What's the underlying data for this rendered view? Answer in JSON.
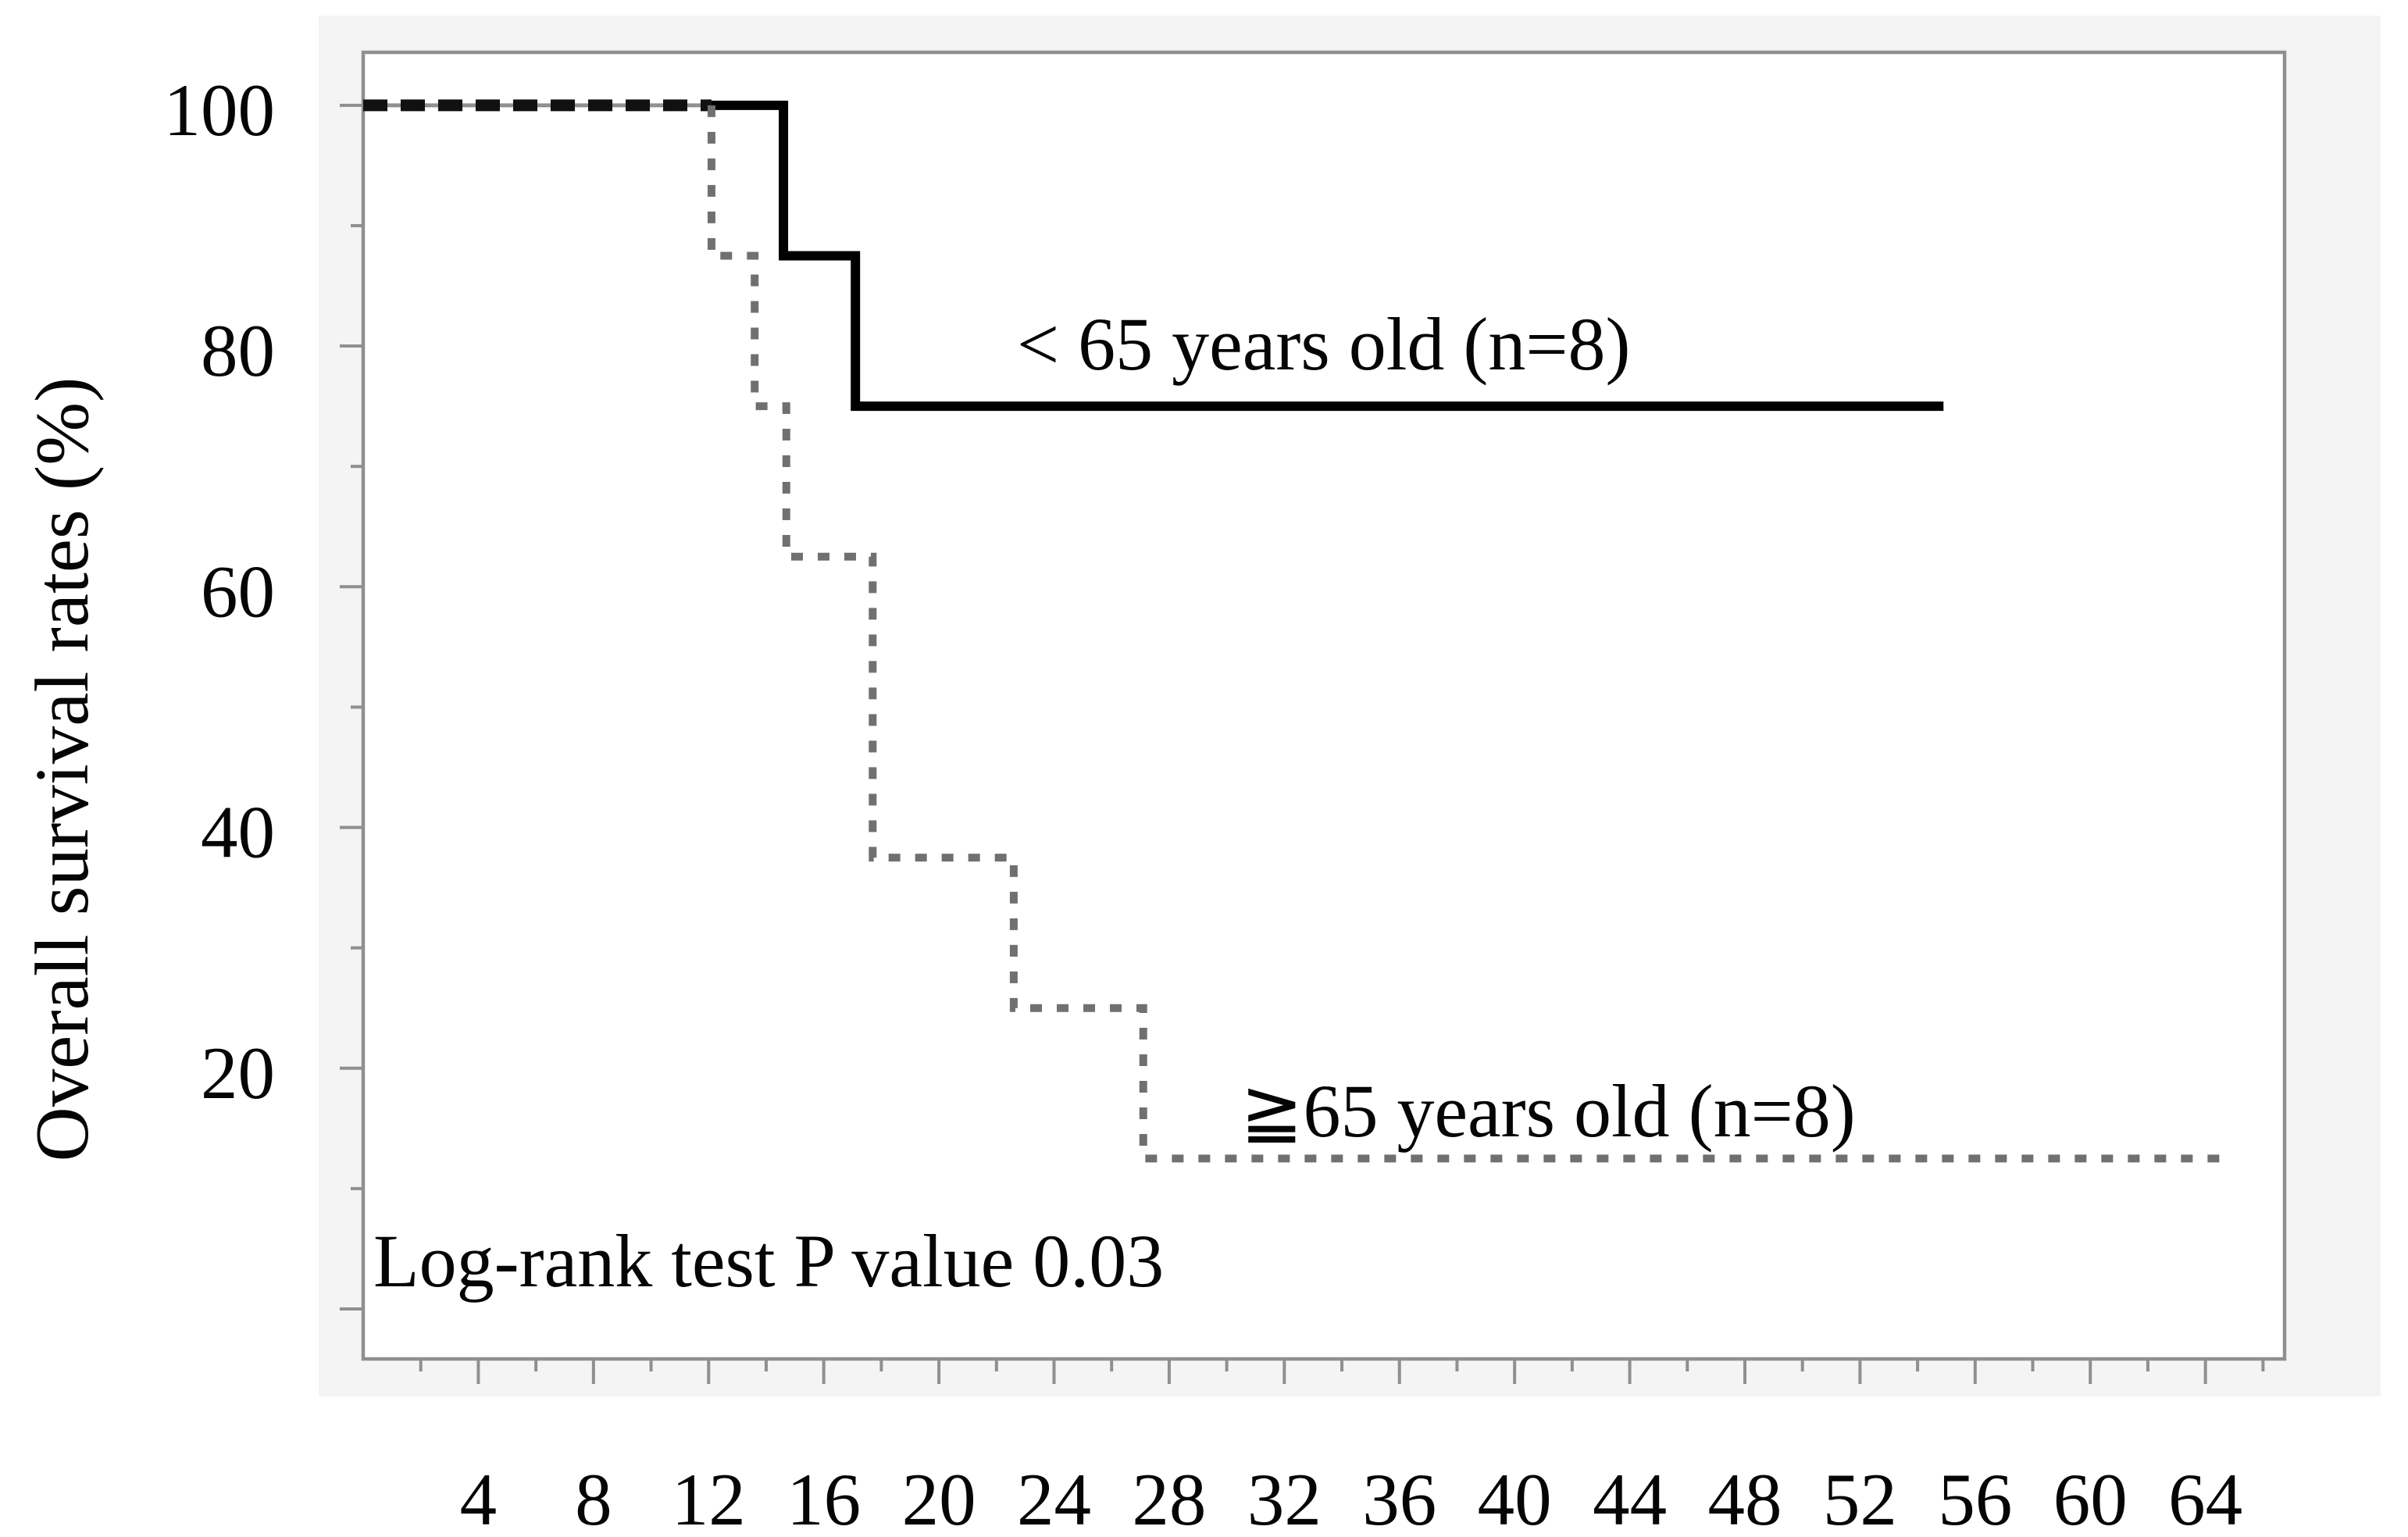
{
  "chart_data": {
    "type": "line",
    "subtype": "kaplan-meier-step-curves",
    "title": "",
    "xlabel": "",
    "ylabel": "Overall survival rates (%)",
    "annotation": "Log-rank test P value 0.03",
    "xlim": [
      0,
      66.75
    ],
    "ylim": [
      -4.15,
      104.4
    ],
    "grid": false,
    "legend_position": "inline-labels",
    "x_ticks": {
      "major": [
        4,
        8,
        12,
        16,
        20,
        24,
        28,
        32,
        36,
        40,
        44,
        48,
        52,
        56,
        60,
        64
      ],
      "labels": [
        "4",
        "8",
        "12",
        "16",
        "20",
        "24",
        "28",
        "32",
        "36",
        "40",
        "44",
        "48",
        "52",
        "56",
        "60",
        "64"
      ],
      "minor": [
        2,
        6,
        10,
        14,
        18,
        22,
        26,
        30,
        34,
        38,
        42,
        46,
        50,
        54,
        58,
        62,
        66
      ]
    },
    "y_ticks": {
      "major": [
        0,
        20,
        40,
        60,
        80,
        100
      ],
      "labels": [
        "",
        "20",
        "40",
        "60",
        "80",
        "100"
      ],
      "minor": [
        10,
        30,
        50,
        70,
        90
      ]
    },
    "series": [
      {
        "name": "< 65 years old (n=8)",
        "style": "solid",
        "color": "#000000",
        "points": [
          [
            0,
            100
          ],
          [
            14.6,
            100
          ],
          [
            14.6,
            87.5
          ],
          [
            17.1,
            87.5
          ],
          [
            17.1,
            75
          ],
          [
            54.9,
            75
          ]
        ]
      },
      {
        "name": "≧65 years old (n=8)",
        "style": "dashed",
        "color": "#707070",
        "points": [
          [
            0,
            100
          ],
          [
            12.1,
            100
          ],
          [
            12.1,
            87.5
          ],
          [
            13.6,
            87.5
          ],
          [
            13.6,
            75
          ],
          [
            14.7,
            75
          ],
          [
            14.7,
            62.5
          ],
          [
            17.7,
            62.5
          ],
          [
            17.7,
            37.5
          ],
          [
            22.6,
            37.5
          ],
          [
            22.6,
            25
          ],
          [
            27.1,
            25
          ],
          [
            27.1,
            12.5
          ],
          [
            64.7,
            12.5
          ]
        ]
      }
    ],
    "colors": {
      "frame": "#8f8f8f",
      "outer_panel": "#f4f4f4",
      "plot_background": "#ffffff",
      "solid_series": "#000000",
      "dashed_series": "#707070",
      "text": "#050505"
    }
  }
}
